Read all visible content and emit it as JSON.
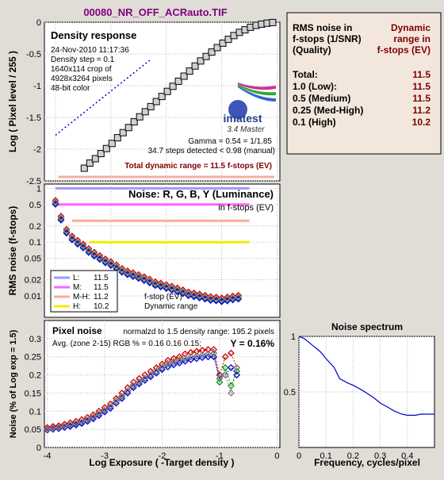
{
  "title": "00080_NR_OFF_ACRauto.TIF",
  "summary": {
    "header_left": [
      "RMS noise in",
      "f-stops (1/SNR)",
      "(Quality)"
    ],
    "header_right": [
      "Dynamic",
      "range in",
      "f-stops (EV)"
    ],
    "rows": [
      {
        "label": "Total:",
        "value": "11.5"
      },
      {
        "label": "1.0   (Low):",
        "value": "11.5"
      },
      {
        "label": "0.5   (Medium)",
        "value": "11.5"
      },
      {
        "label": "0.25 (Med-High)",
        "value": "11.2"
      },
      {
        "label": "0.1   (High)",
        "value": "10.2"
      }
    ]
  },
  "density": {
    "title": "Density response",
    "info": [
      "24-Nov-2010 11:17:36",
      "Density step = 0.1",
      "1640x114 crop of",
      "4928x3264 pixels",
      "48-bit color"
    ],
    "logo_text": "imatest",
    "logo_sub": "3.4  Master",
    "gamma": "Gamma = 0.54 = 1/1.85",
    "steps": "34.7 steps detected < 0.98 (manual)",
    "total": "Total dynamic range = 11.5 f-stops (EV)",
    "ylabel": "Log ( Pixel level / 255 )"
  },
  "noise": {
    "title": "Noise: R, G, B, Y (Luminance)",
    "subtitle": "in f-stops (EV)",
    "ylabel": "RMS noise (f-stops)",
    "legend": [
      {
        "label": "L:",
        "value": "11.5",
        "color": "#9999ff"
      },
      {
        "label": "M:",
        "value": "11.5",
        "color": "#ff66ff"
      },
      {
        "label": "M-H:",
        "value": "11.2",
        "color": "#ffaa99"
      },
      {
        "label": "H:",
        "value": "10.2",
        "color": "#eeee00"
      }
    ],
    "legend_note1": "f-stop (EV)",
    "legend_note2": "Dynamic range"
  },
  "pixel_noise": {
    "title": "Pixel noise",
    "norm": "normalzd to 1.5 density range: 195.2 pixels",
    "avg": "Avg. (zone 2-15) RGB % = 0.16  0.16  0.15;",
    "y_label": "Y = 0.16%",
    "ylabel": "Noise (% of Log exp = 1.5)",
    "xlabel": "Log Exposure ( -Target density )"
  },
  "spectrum": {
    "title": "Noise spectrum",
    "xlabel": "Frequency, cycles/pixel"
  },
  "colors": {
    "red": "#cc0000",
    "green": "#009900",
    "blue": "#0000dd",
    "gray": "#808080",
    "darkred": "#800000",
    "title": "#800080"
  },
  "chart_data": [
    {
      "type": "scatter",
      "name": "density_response",
      "x": [
        -3.48,
        -3.38,
        -3.28,
        -3.18,
        -3.08,
        -2.98,
        -2.88,
        -2.78,
        -2.68,
        -2.58,
        -2.48,
        -2.38,
        -2.28,
        -2.18,
        -2.08,
        -1.98,
        -1.88,
        -1.78,
        -1.68,
        -1.58,
        -1.48,
        -1.38,
        -1.28,
        -1.18,
        -1.08,
        -0.98,
        -0.88,
        -0.78,
        -0.68,
        -0.58,
        -0.48,
        -0.38,
        -0.28,
        -0.18,
        -0.08
      ],
      "y": [
        -2.3,
        -2.22,
        -2.15,
        -2.07,
        -1.99,
        -1.91,
        -1.82,
        -1.74,
        -1.66,
        -1.57,
        -1.49,
        -1.41,
        -1.33,
        -1.25,
        -1.17,
        -1.09,
        -1.01,
        -0.93,
        -0.85,
        -0.77,
        -0.69,
        -0.61,
        -0.54,
        -0.47,
        -0.4,
        -0.33,
        -0.27,
        -0.21,
        -0.16,
        -0.12,
        -0.08,
        -0.05,
        -0.03,
        -0.015,
        -0.005
      ],
      "fit_x": [
        -4.0,
        -2.3
      ],
      "fit_y": [
        -1.78,
        -0.6
      ],
      "xlim": [
        -4.2,
        0.05
      ],
      "ylim": [
        -2.5,
        0
      ],
      "yticks": [
        -2.5,
        -2,
        -1.5,
        -1,
        -0.5,
        0
      ],
      "ylabel": "Log ( Pixel level / 255 )"
    },
    {
      "type": "scatter",
      "name": "rms_noise_fstops",
      "log_scale_y": true,
      "x": [
        -4.0,
        -3.9,
        -3.8,
        -3.7,
        -3.6,
        -3.5,
        -3.4,
        -3.3,
        -3.2,
        -3.1,
        -3.0,
        -2.9,
        -2.8,
        -2.7,
        -2.6,
        -2.5,
        -2.4,
        -2.3,
        -2.2,
        -2.1,
        -2.0,
        -1.9,
        -1.8,
        -1.7,
        -1.6,
        -1.5,
        -1.4,
        -1.3,
        -1.2,
        -1.1,
        -1.0,
        -0.9,
        -0.8,
        -0.7
      ],
      "series": [
        {
          "name": "L",
          "color": "#9999ff",
          "level": 1.0,
          "xrange": [
            -4.0,
            -0.5
          ]
        },
        {
          "name": "M",
          "color": "#ff66ff",
          "level": 0.5,
          "xrange": [
            -4.0,
            -0.5
          ]
        },
        {
          "name": "M-H",
          "color": "#ffaa99",
          "level": 0.25,
          "xrange": [
            -3.7,
            -0.5
          ]
        },
        {
          "name": "H",
          "color": "#eeee00",
          "level": 0.1,
          "xrange": [
            -3.4,
            -0.5
          ]
        }
      ],
      "y_values": [
        0.55,
        0.28,
        0.16,
        0.12,
        0.1,
        0.085,
        0.07,
        0.06,
        0.052,
        0.045,
        0.04,
        0.035,
        0.03,
        0.027,
        0.025,
        0.023,
        0.021,
        0.019,
        0.017,
        0.016,
        0.015,
        0.014,
        0.013,
        0.012,
        0.011,
        0.0105,
        0.01,
        0.0095,
        0.009,
        0.0088,
        0.0085,
        0.0088,
        0.0092,
        0.0095
      ],
      "yticks": [
        0.01,
        0.02,
        0.05,
        0.1,
        0.2,
        0.5,
        1
      ],
      "ylim": [
        0.004,
        1.2
      ],
      "xlim": [
        -4.2,
        0.05
      ]
    },
    {
      "type": "line",
      "name": "pixel_noise",
      "x": [
        -4.0,
        -3.9,
        -3.8,
        -3.7,
        -3.6,
        -3.5,
        -3.4,
        -3.3,
        -3.2,
        -3.1,
        -3.0,
        -2.9,
        -2.8,
        -2.7,
        -2.6,
        -2.5,
        -2.4,
        -2.3,
        -2.2,
        -2.1,
        -2.0,
        -1.9,
        -1.8,
        -1.7,
        -1.6,
        -1.5,
        -1.4,
        -1.3,
        -1.2,
        -1.1,
        -1.0,
        -0.9,
        -0.8,
        -0.7
      ],
      "series": [
        {
          "name": "R",
          "color": "#cc0000",
          "values": [
            0.055,
            0.058,
            0.06,
            0.064,
            0.068,
            0.072,
            0.077,
            0.083,
            0.09,
            0.1,
            0.11,
            0.12,
            0.135,
            0.15,
            0.165,
            0.18,
            0.19,
            0.2,
            0.21,
            0.22,
            0.23,
            0.24,
            0.245,
            0.25,
            0.258,
            0.262,
            0.265,
            0.268,
            0.27,
            0.27,
            0.2,
            0.25,
            0.26,
            0.22
          ]
        },
        {
          "name": "G",
          "color": "#009900",
          "values": [
            0.05,
            0.053,
            0.055,
            0.058,
            0.062,
            0.066,
            0.07,
            0.076,
            0.083,
            0.093,
            0.103,
            0.113,
            0.128,
            0.14,
            0.155,
            0.17,
            0.18,
            0.19,
            0.2,
            0.21,
            0.22,
            0.23,
            0.235,
            0.24,
            0.245,
            0.25,
            0.252,
            0.255,
            0.258,
            0.26,
            0.18,
            0.22,
            0.17,
            0.21
          ]
        },
        {
          "name": "B",
          "color": "#0000dd",
          "values": [
            0.048,
            0.05,
            0.052,
            0.055,
            0.058,
            0.062,
            0.066,
            0.072,
            0.079,
            0.088,
            0.098,
            0.108,
            0.122,
            0.135,
            0.15,
            0.165,
            0.175,
            0.185,
            0.195,
            0.205,
            0.215,
            0.222,
            0.228,
            0.233,
            0.238,
            0.242,
            0.245,
            0.248,
            0.25,
            0.25,
            0.19,
            0.2,
            0.22,
            0.2
          ]
        },
        {
          "name": "Y",
          "color": "#808080",
          "values": [
            0.05,
            0.053,
            0.055,
            0.058,
            0.062,
            0.066,
            0.07,
            0.076,
            0.083,
            0.093,
            0.103,
            0.113,
            0.128,
            0.14,
            0.155,
            0.17,
            0.18,
            0.19,
            0.2,
            0.21,
            0.22,
            0.23,
            0.235,
            0.24,
            0.245,
            0.25,
            0.252,
            0.255,
            0.258,
            0.26,
            0.19,
            0.2,
            0.15,
            0.22
          ]
        }
      ],
      "xticks": [
        -4,
        -3,
        -2,
        -1,
        0
      ],
      "yticks": [
        0,
        0.05,
        0.1,
        0.15,
        0.2,
        0.25,
        0.3
      ],
      "xlim": [
        -4.05,
        0.05
      ],
      "ylim": [
        0,
        0.35
      ],
      "xlabel": "Log Exposure ( -Target density )",
      "ylabel": "Noise (% of Log exp = 1.5)"
    },
    {
      "type": "line",
      "name": "noise_spectrum",
      "x": [
        0,
        0.02,
        0.05,
        0.08,
        0.1,
        0.13,
        0.15,
        0.18,
        0.2,
        0.23,
        0.25,
        0.28,
        0.3,
        0.33,
        0.35,
        0.38,
        0.4,
        0.43,
        0.45,
        0.5
      ],
      "y": [
        1.0,
        0.98,
        0.92,
        0.86,
        0.8,
        0.72,
        0.62,
        0.58,
        0.56,
        0.52,
        0.49,
        0.44,
        0.4,
        0.36,
        0.33,
        0.3,
        0.29,
        0.29,
        0.3,
        0.3
      ],
      "xticks": [
        0,
        0.1,
        0.2,
        0.3,
        0.4
      ],
      "yticks": [
        0.5,
        1
      ],
      "xlim": [
        0,
        0.5
      ],
      "ylim": [
        0,
        1
      ],
      "xlabel": "Frequency, cycles/pixel"
    }
  ]
}
